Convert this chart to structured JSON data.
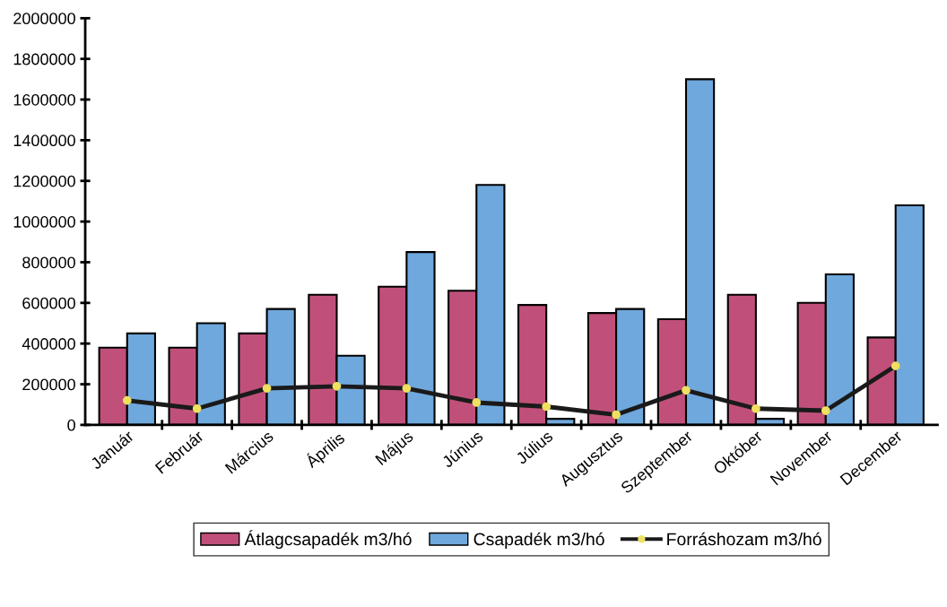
{
  "chart_data": {
    "type": "bar",
    "categories": [
      "Január",
      "Február",
      "Március",
      "Április",
      "Május",
      "Június",
      "Július",
      "Augusztus",
      "Szeptember",
      "Október",
      "November",
      "December"
    ],
    "series": [
      {
        "name": "Átlagcsapadék m3/hó",
        "color": "#c0507a",
        "values": [
          380000,
          380000,
          450000,
          640000,
          680000,
          660000,
          590000,
          550000,
          520000,
          640000,
          600000,
          430000
        ]
      },
      {
        "name": "Csapadék m3/hó",
        "color": "#6fa8dc",
        "values": [
          450000,
          500000,
          570000,
          340000,
          850000,
          1180000,
          30000,
          570000,
          1700000,
          30000,
          740000,
          1080000
        ]
      },
      {
        "name": "Forráshozam m3/hó",
        "type": "line",
        "color": "#1a1a1a",
        "marker": "circle",
        "values": [
          120000,
          80000,
          180000,
          190000,
          180000,
          110000,
          90000,
          50000,
          170000,
          80000,
          70000,
          290000
        ]
      }
    ],
    "ylim": [
      0,
      2000000
    ],
    "yticks": [
      0,
      200000,
      400000,
      600000,
      800000,
      1000000,
      1200000,
      1400000,
      1600000,
      1800000,
      2000000
    ],
    "grid": false,
    "legend": "bottom"
  }
}
